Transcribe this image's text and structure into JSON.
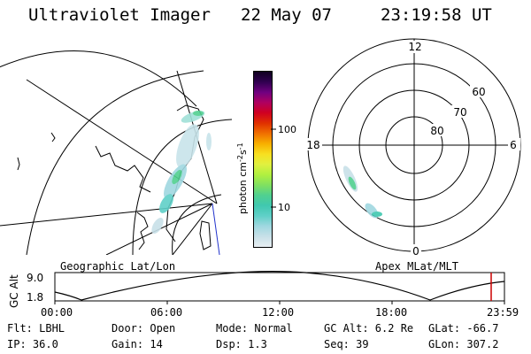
{
  "header": {
    "title": "Ultraviolet Imager",
    "date": "22 May 07",
    "time": "23:19:58 UT"
  },
  "colorbar": {
    "unit_label": "photon cm",
    "unit_exp1": "-2",
    "unit_s": "s",
    "unit_exp2": "-1",
    "ticks": [
      {
        "label": "100",
        "value": 100
      },
      {
        "label": "10",
        "value": 10
      }
    ],
    "colors": [
      "#e8eef2",
      "#c8e0e8",
      "#a0d8e0",
      "#60d0c8",
      "#40c8b0",
      "#50d090",
      "#80e060",
      "#b0f040",
      "#e0f040",
      "#f8e020",
      "#f8b000",
      "#f07000",
      "#e03000",
      "#d00020",
      "#b00060",
      "#700080",
      "#300050",
      "#100020"
    ]
  },
  "left_map": {
    "label": "Geographic Lat/Lon"
  },
  "right_map": {
    "label": "Apex MLat/MLT",
    "mlt_labels": {
      "top": "12",
      "left": "18",
      "right": "6",
      "bottom": "0"
    },
    "lat_labels": [
      "60",
      "70",
      "80"
    ]
  },
  "altitude_plot": {
    "ylabel": "GC Alt",
    "yticks": [
      "9.0",
      "1.8"
    ],
    "xticks": [
      "00:00",
      "06:00",
      "12:00",
      "18:00",
      "23:59"
    ],
    "current_marker_time": "23:19:58",
    "marker_color": "#cc0000"
  },
  "info": {
    "row1": {
      "flt": "Flt: LBHL",
      "door": "Door: Open",
      "mode": "Mode: Normal",
      "gcalt": "GC Alt: 6.2 Re",
      "glat": "GLat: -66.7"
    },
    "row2": {
      "ip": "IP: 36.0",
      "gain": "Gain: 14",
      "dsp": "Dsp:    1.3",
      "seq": "Seq: 39",
      "glon": "GLon: 307.2"
    }
  }
}
